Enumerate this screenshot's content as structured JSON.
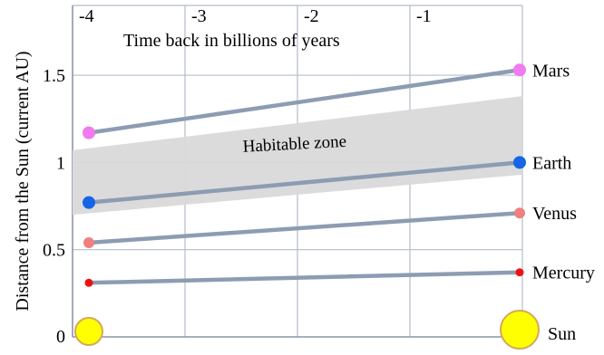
{
  "chart_data": {
    "type": "line",
    "title": "",
    "xlabel": "Time back in billions of years",
    "ylabel": "Distance from the Sun (current AU)",
    "xlim": [
      -4.0,
      0.0
    ],
    "ylim": [
      0,
      1.9
    ],
    "x_ticks": [
      "-4",
      "-3",
      "-2",
      "-1"
    ],
    "y_ticks": [
      "0",
      "0.5",
      "1",
      "1.5"
    ],
    "grid": true,
    "series": [
      {
        "name": "Mars",
        "x": [
          -4,
          0
        ],
        "y": [
          1.17,
          1.53
        ],
        "color": "#f07af0",
        "marker_size": 7
      },
      {
        "name": "Earth",
        "x": [
          -4,
          0
        ],
        "y": [
          0.77,
          1.0
        ],
        "color": "#1565e6",
        "marker_size": 7
      },
      {
        "name": "Venus",
        "x": [
          -4,
          0
        ],
        "y": [
          0.54,
          0.71
        ],
        "color": "#f08080",
        "marker_size": 6
      },
      {
        "name": "Mercury",
        "x": [
          -4,
          0
        ],
        "y": [
          0.31,
          0.37
        ],
        "color": "#ee1111",
        "marker_size": 4.5
      }
    ],
    "bands": [
      {
        "name": "Habitable zone",
        "x": [
          -4,
          0
        ],
        "lower": [
          0.7,
          0.93
        ],
        "upper": [
          1.07,
          1.38
        ],
        "color": "#d9d9d9"
      }
    ],
    "suns": {
      "name": "Sun",
      "x": [
        -4,
        0
      ],
      "y": 0,
      "sizes": [
        1,
        1.4
      ],
      "color": "#ffff00",
      "stroke": "#d4a85a"
    },
    "line_color": "#8c9cb2"
  }
}
